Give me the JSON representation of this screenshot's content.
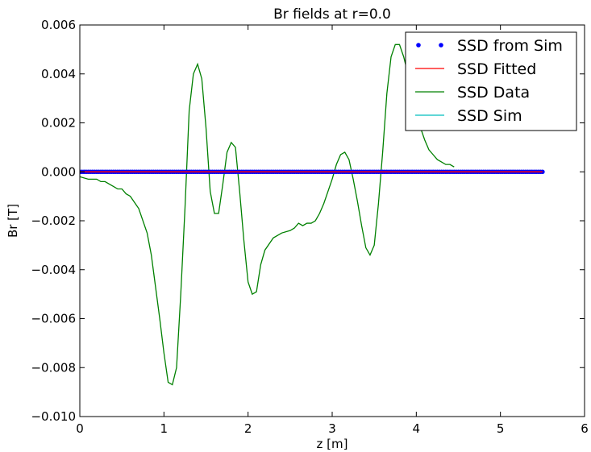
{
  "chart_data": {
    "type": "line",
    "title": "Br fields at r=0.0",
    "xlabel": "z [m]",
    "ylabel": "Br [T]",
    "xlim": [
      0,
      6
    ],
    "ylim": [
      -0.01,
      0.006
    ],
    "x_ticks": [
      0,
      1,
      2,
      3,
      4,
      5,
      6
    ],
    "x_tick_labels": [
      "0",
      "1",
      "2",
      "3",
      "4",
      "5",
      "6"
    ],
    "y_ticks": [
      0.006,
      0.004,
      0.002,
      0.0,
      -0.002,
      -0.004,
      -0.006,
      -0.008,
      -0.01
    ],
    "y_tick_labels": [
      "0.006",
      "0.004",
      "0.002",
      "0.000",
      "−0.002",
      "−0.004",
      "−0.006",
      "−0.008",
      "−0.010"
    ],
    "legend_position": "top-right",
    "grid": false,
    "series": [
      {
        "name": "SSD from Sim",
        "style": "points",
        "color": "#0000ff",
        "x_range": [
          0,
          5.5
        ],
        "x_step": 0.025,
        "y_constant": 0.0
      },
      {
        "name": "SSD Fitted",
        "style": "line",
        "color": "#ff0000",
        "x": [
          0,
          5.5
        ],
        "y": [
          0.0,
          0.0
        ]
      },
      {
        "name": "SSD Data",
        "style": "line",
        "color": "#008000",
        "x": [
          0.0,
          0.1,
          0.2,
          0.25,
          0.3,
          0.35,
          0.4,
          0.45,
          0.5,
          0.55,
          0.6,
          0.7,
          0.8,
          0.85,
          0.9,
          0.95,
          1.0,
          1.05,
          1.1,
          1.15,
          1.2,
          1.25,
          1.3,
          1.35,
          1.4,
          1.45,
          1.5,
          1.55,
          1.6,
          1.65,
          1.7,
          1.75,
          1.8,
          1.85,
          1.9,
          1.95,
          2.0,
          2.05,
          2.1,
          2.15,
          2.2,
          2.3,
          2.4,
          2.5,
          2.55,
          2.6,
          2.65,
          2.7,
          2.75,
          2.8,
          2.85,
          2.9,
          2.95,
          3.0,
          3.05,
          3.1,
          3.15,
          3.2,
          3.25,
          3.3,
          3.35,
          3.4,
          3.45,
          3.5,
          3.55,
          3.6,
          3.65,
          3.7,
          3.75,
          3.8,
          3.85,
          3.9,
          3.95,
          4.0,
          4.05,
          4.1,
          4.15,
          4.2,
          4.25,
          4.3,
          4.35,
          4.4,
          4.45
        ],
        "y": [
          -0.0002,
          -0.0003,
          -0.0003,
          -0.0004,
          -0.0004,
          -0.0005,
          -0.0006,
          -0.0007,
          -0.0007,
          -0.0009,
          -0.001,
          -0.0015,
          -0.0025,
          -0.0034,
          -0.0047,
          -0.006,
          -0.0074,
          -0.0086,
          -0.0087,
          -0.008,
          -0.005,
          -0.0015,
          0.0025,
          0.004,
          0.0044,
          0.0038,
          0.0018,
          -0.0008,
          -0.0017,
          -0.0017,
          -0.0005,
          0.0008,
          0.0012,
          0.001,
          -0.0008,
          -0.0028,
          -0.0045,
          -0.005,
          -0.0049,
          -0.0038,
          -0.0032,
          -0.0027,
          -0.0025,
          -0.0024,
          -0.0023,
          -0.0021,
          -0.0022,
          -0.0021,
          -0.0021,
          -0.002,
          -0.0017,
          -0.0013,
          -0.0008,
          -0.0003,
          0.0003,
          0.0007,
          0.0008,
          0.0005,
          -0.0003,
          -0.0012,
          -0.0022,
          -0.0031,
          -0.0034,
          -0.003,
          -0.0013,
          0.0008,
          0.0032,
          0.0047,
          0.0052,
          0.0052,
          0.0047,
          0.004,
          0.0033,
          0.0025,
          0.0018,
          0.0013,
          0.0009,
          0.0007,
          0.0005,
          0.0004,
          0.0003,
          0.0003,
          0.0002
        ]
      },
      {
        "name": "SSD Sim",
        "style": "line",
        "color": "#00bfbf",
        "x": [
          0,
          4.5
        ],
        "y": [
          0.0,
          0.0
        ]
      }
    ]
  }
}
